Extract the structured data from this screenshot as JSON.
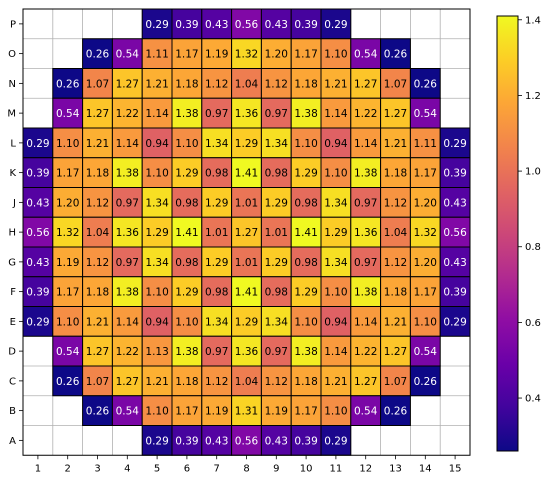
{
  "chart_data": {
    "type": "heatmap",
    "title": "",
    "xlabel": "",
    "ylabel": "",
    "x_categories": [
      "1",
      "2",
      "3",
      "4",
      "5",
      "6",
      "7",
      "8",
      "9",
      "10",
      "11",
      "12",
      "13",
      "14",
      "15"
    ],
    "y_categories": [
      "P",
      "O",
      "N",
      "M",
      "L",
      "K",
      "J",
      "H",
      "G",
      "F",
      "E",
      "D",
      "C",
      "B",
      "A"
    ],
    "values": [
      [
        null,
        null,
        null,
        null,
        0.29,
        0.39,
        0.43,
        0.56,
        0.43,
        0.39,
        0.29,
        null,
        null,
        null,
        null
      ],
      [
        null,
        null,
        0.26,
        0.54,
        1.11,
        1.17,
        1.19,
        1.32,
        1.2,
        1.17,
        1.1,
        0.54,
        0.26,
        null,
        null
      ],
      [
        null,
        0.26,
        1.07,
        1.27,
        1.21,
        1.18,
        1.12,
        1.04,
        1.12,
        1.18,
        1.21,
        1.27,
        1.07,
        0.26,
        null
      ],
      [
        null,
        0.54,
        1.27,
        1.22,
        1.14,
        1.38,
        0.97,
        1.36,
        0.97,
        1.38,
        1.14,
        1.22,
        1.27,
        0.54,
        null
      ],
      [
        0.29,
        1.1,
        1.21,
        1.14,
        0.94,
        1.1,
        1.34,
        1.29,
        1.34,
        1.1,
        0.94,
        1.14,
        1.21,
        1.11,
        0.29
      ],
      [
        0.39,
        1.17,
        1.18,
        1.38,
        1.1,
        1.29,
        0.98,
        1.41,
        0.98,
        1.29,
        1.1,
        1.38,
        1.18,
        1.17,
        0.39
      ],
      [
        0.43,
        1.2,
        1.12,
        0.97,
        1.34,
        0.98,
        1.29,
        1.01,
        1.29,
        0.98,
        1.34,
        0.97,
        1.12,
        1.2,
        0.43
      ],
      [
        0.56,
        1.32,
        1.04,
        1.36,
        1.29,
        1.41,
        1.01,
        1.27,
        1.01,
        1.41,
        1.29,
        1.36,
        1.04,
        1.32,
        0.56
      ],
      [
        0.43,
        1.19,
        1.12,
        0.97,
        1.34,
        0.98,
        1.29,
        1.01,
        1.29,
        0.98,
        1.34,
        0.97,
        1.12,
        1.2,
        0.43
      ],
      [
        0.39,
        1.17,
        1.18,
        1.38,
        1.1,
        1.29,
        0.98,
        1.41,
        0.98,
        1.29,
        1.1,
        1.38,
        1.18,
        1.17,
        0.39
      ],
      [
        0.29,
        1.1,
        1.21,
        1.14,
        0.94,
        1.1,
        1.34,
        1.29,
        1.34,
        1.1,
        0.94,
        1.14,
        1.21,
        1.1,
        0.29
      ],
      [
        null,
        0.54,
        1.27,
        1.22,
        1.13,
        1.38,
        0.97,
        1.36,
        0.97,
        1.38,
        1.14,
        1.22,
        1.27,
        0.54,
        null
      ],
      [
        null,
        0.26,
        1.07,
        1.27,
        1.21,
        1.18,
        1.12,
        1.04,
        1.12,
        1.18,
        1.21,
        1.27,
        1.07,
        0.26,
        null
      ],
      [
        null,
        null,
        0.26,
        0.54,
        1.1,
        1.17,
        1.19,
        1.31,
        1.19,
        1.17,
        1.1,
        0.54,
        0.26,
        null,
        null
      ],
      [
        null,
        null,
        null,
        null,
        0.29,
        0.39,
        0.43,
        0.56,
        0.43,
        0.39,
        0.29,
        null,
        null,
        null,
        null
      ]
    ],
    "colormap": "plasma",
    "vmin": 0.26,
    "vmax": 1.41,
    "colorbar_ticks": [
      "0.4",
      "0.6",
      "0.8",
      "1.0",
      "1.2",
      "1.4"
    ],
    "grid": true,
    "colorbar_position": "right"
  }
}
